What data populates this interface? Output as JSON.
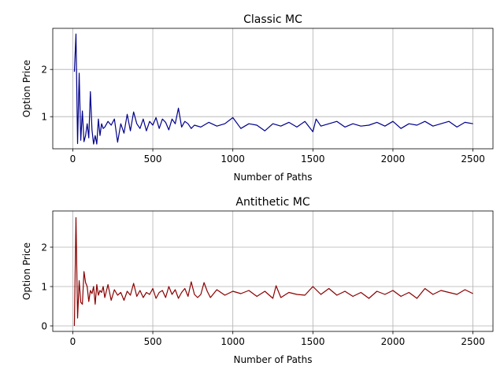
{
  "chart_data": [
    {
      "type": "line",
      "title": "Classic MC",
      "xlabel": "Number of Paths",
      "ylabel": "Option Price",
      "xlim": [
        -125,
        2625
      ],
      "ylim": [
        0.32,
        2.87
      ],
      "xticks": [
        0,
        500,
        1000,
        1500,
        2000,
        2500
      ],
      "yticks": [
        1,
        2
      ],
      "grid": true,
      "series": [
        {
          "color": "#00008b",
          "x": [
            10,
            20,
            30,
            40,
            50,
            60,
            70,
            80,
            90,
            100,
            110,
            120,
            130,
            140,
            150,
            160,
            170,
            180,
            190,
            200,
            220,
            240,
            260,
            280,
            300,
            320,
            340,
            360,
            380,
            400,
            420,
            440,
            460,
            480,
            500,
            520,
            540,
            560,
            580,
            600,
            620,
            640,
            660,
            680,
            700,
            720,
            740,
            760,
            800,
            850,
            900,
            950,
            1000,
            1050,
            1100,
            1150,
            1200,
            1250,
            1300,
            1350,
            1400,
            1450,
            1500,
            1520,
            1550,
            1600,
            1650,
            1700,
            1750,
            1800,
            1850,
            1900,
            1950,
            2000,
            2050,
            2100,
            2150,
            2200,
            2250,
            2300,
            2350,
            2400,
            2450,
            2500
          ],
          "values": [
            1.95,
            2.75,
            0.43,
            1.92,
            0.5,
            1.12,
            0.47,
            0.6,
            0.85,
            0.55,
            1.53,
            0.72,
            0.42,
            0.6,
            0.42,
            0.95,
            0.6,
            0.85,
            0.75,
            0.78,
            0.9,
            0.82,
            0.95,
            0.46,
            0.85,
            0.65,
            1.05,
            0.7,
            1.1,
            0.85,
            0.75,
            0.95,
            0.7,
            0.9,
            0.82,
            0.98,
            0.75,
            0.95,
            0.88,
            0.72,
            0.95,
            0.85,
            1.18,
            0.78,
            0.9,
            0.85,
            0.75,
            0.82,
            0.78,
            0.88,
            0.8,
            0.85,
            0.98,
            0.75,
            0.85,
            0.82,
            0.7,
            0.85,
            0.8,
            0.88,
            0.78,
            0.9,
            0.68,
            0.95,
            0.8,
            0.85,
            0.9,
            0.78,
            0.85,
            0.8,
            0.82,
            0.88,
            0.8,
            0.9,
            0.75,
            0.85,
            0.82,
            0.9,
            0.8,
            0.85,
            0.9,
            0.78,
            0.88,
            0.85
          ]
        }
      ]
    },
    {
      "type": "line",
      "title": "Antithetic MC",
      "xlabel": "Number of Paths",
      "ylabel": "Option Price",
      "xlim": [
        -125,
        2625
      ],
      "ylim": [
        -0.14,
        2.92
      ],
      "xticks": [
        0,
        500,
        1000,
        1500,
        2000,
        2500
      ],
      "yticks": [
        0,
        1,
        2
      ],
      "grid": true,
      "series": [
        {
          "color": "#8b0000",
          "x": [
            10,
            20,
            30,
            40,
            50,
            60,
            70,
            80,
            90,
            100,
            110,
            120,
            130,
            140,
            150,
            160,
            170,
            180,
            190,
            200,
            220,
            240,
            260,
            280,
            300,
            320,
            340,
            360,
            380,
            400,
            420,
            440,
            460,
            480,
            500,
            520,
            540,
            560,
            580,
            600,
            620,
            640,
            660,
            680,
            700,
            720,
            740,
            760,
            780,
            800,
            820,
            840,
            860,
            900,
            950,
            1000,
            1050,
            1100,
            1150,
            1200,
            1250,
            1270,
            1300,
            1350,
            1400,
            1450,
            1500,
            1550,
            1600,
            1650,
            1700,
            1750,
            1800,
            1850,
            1900,
            1950,
            2000,
            2050,
            2100,
            2150,
            2200,
            2250,
            2300,
            2350,
            2400,
            2450,
            2500
          ],
          "values": [
            0.0,
            2.75,
            0.2,
            1.15,
            0.6,
            0.55,
            1.38,
            1.1,
            1.0,
            0.62,
            0.9,
            0.82,
            1.0,
            0.55,
            1.05,
            0.78,
            0.9,
            0.85,
            1.0,
            0.72,
            1.05,
            0.65,
            0.92,
            0.78,
            0.85,
            0.65,
            0.88,
            0.78,
            1.08,
            0.75,
            0.9,
            0.72,
            0.85,
            0.8,
            0.95,
            0.7,
            0.85,
            0.9,
            0.72,
            1.0,
            0.8,
            0.92,
            0.7,
            0.85,
            0.95,
            0.75,
            1.12,
            0.8,
            0.72,
            0.8,
            1.1,
            0.88,
            0.72,
            0.92,
            0.78,
            0.88,
            0.82,
            0.9,
            0.75,
            0.88,
            0.7,
            1.02,
            0.72,
            0.85,
            0.8,
            0.78,
            1.0,
            0.8,
            0.95,
            0.78,
            0.88,
            0.75,
            0.85,
            0.7,
            0.88,
            0.8,
            0.9,
            0.75,
            0.85,
            0.7,
            0.95,
            0.8,
            0.9,
            0.85,
            0.8,
            0.92,
            0.82
          ]
        }
      ]
    }
  ]
}
